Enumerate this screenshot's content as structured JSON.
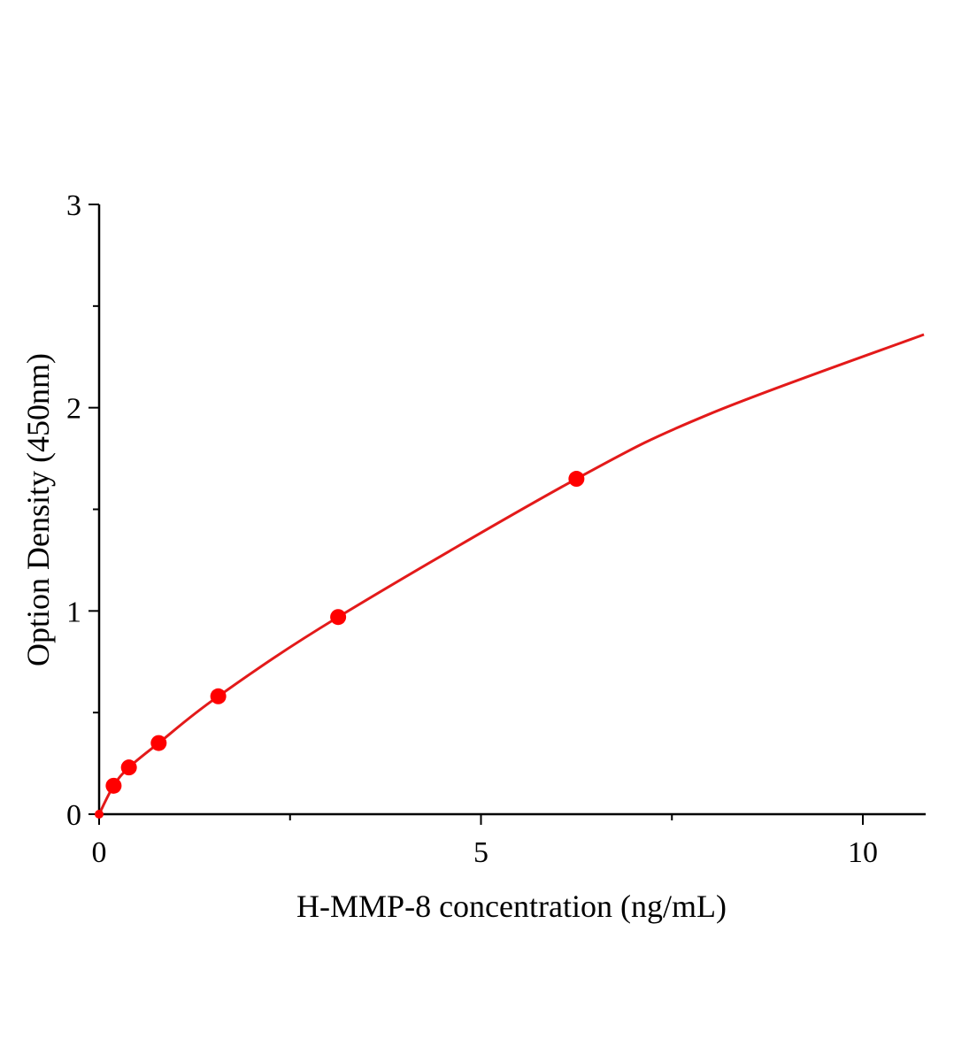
{
  "chart_data": {
    "type": "scatter",
    "title": "",
    "xlabel": "H-MMP-8  concentration (ng/mL)",
    "ylabel": "Option Density (450nm)",
    "xlim": [
      0,
      10.8
    ],
    "ylim": [
      0,
      3
    ],
    "x_ticks": [
      0,
      5,
      10
    ],
    "x_tick_labels": [
      "0",
      "5",
      "10"
    ],
    "x_minor_ticks": [
      2.5,
      7.5
    ],
    "y_ticks": [
      0,
      1,
      2,
      3
    ],
    "y_tick_labels": [
      "0",
      "1",
      "2",
      "3"
    ],
    "y_minor_ticks": [
      0.5,
      1.5,
      2.5
    ],
    "grid": false,
    "legend": "none",
    "series": [
      {
        "marker_color": "#ff0000",
        "points": [
          {
            "x": 0,
            "y": 0.0
          },
          {
            "x": 0.19,
            "y": 0.14
          },
          {
            "x": 0.39,
            "y": 0.23
          },
          {
            "x": 0.78,
            "y": 0.35
          },
          {
            "x": 1.56,
            "y": 0.58
          },
          {
            "x": 3.13,
            "y": 0.97
          },
          {
            "x": 6.25,
            "y": 1.65
          }
        ],
        "fit": {
          "color": "#e31a1a",
          "x_start": 0,
          "x_end": 10.8,
          "points": [
            {
              "x": 0,
              "y": 0.0
            },
            {
              "x": 0.19,
              "y": 0.14
            },
            {
              "x": 0.39,
              "y": 0.23
            },
            {
              "x": 0.78,
              "y": 0.35
            },
            {
              "x": 1.56,
              "y": 0.58
            },
            {
              "x": 3.13,
              "y": 0.97
            },
            {
              "x": 6.25,
              "y": 1.65
            },
            {
              "x": 8.0,
              "y": 1.97
            },
            {
              "x": 10.8,
              "y": 2.36
            }
          ]
        }
      }
    ]
  }
}
